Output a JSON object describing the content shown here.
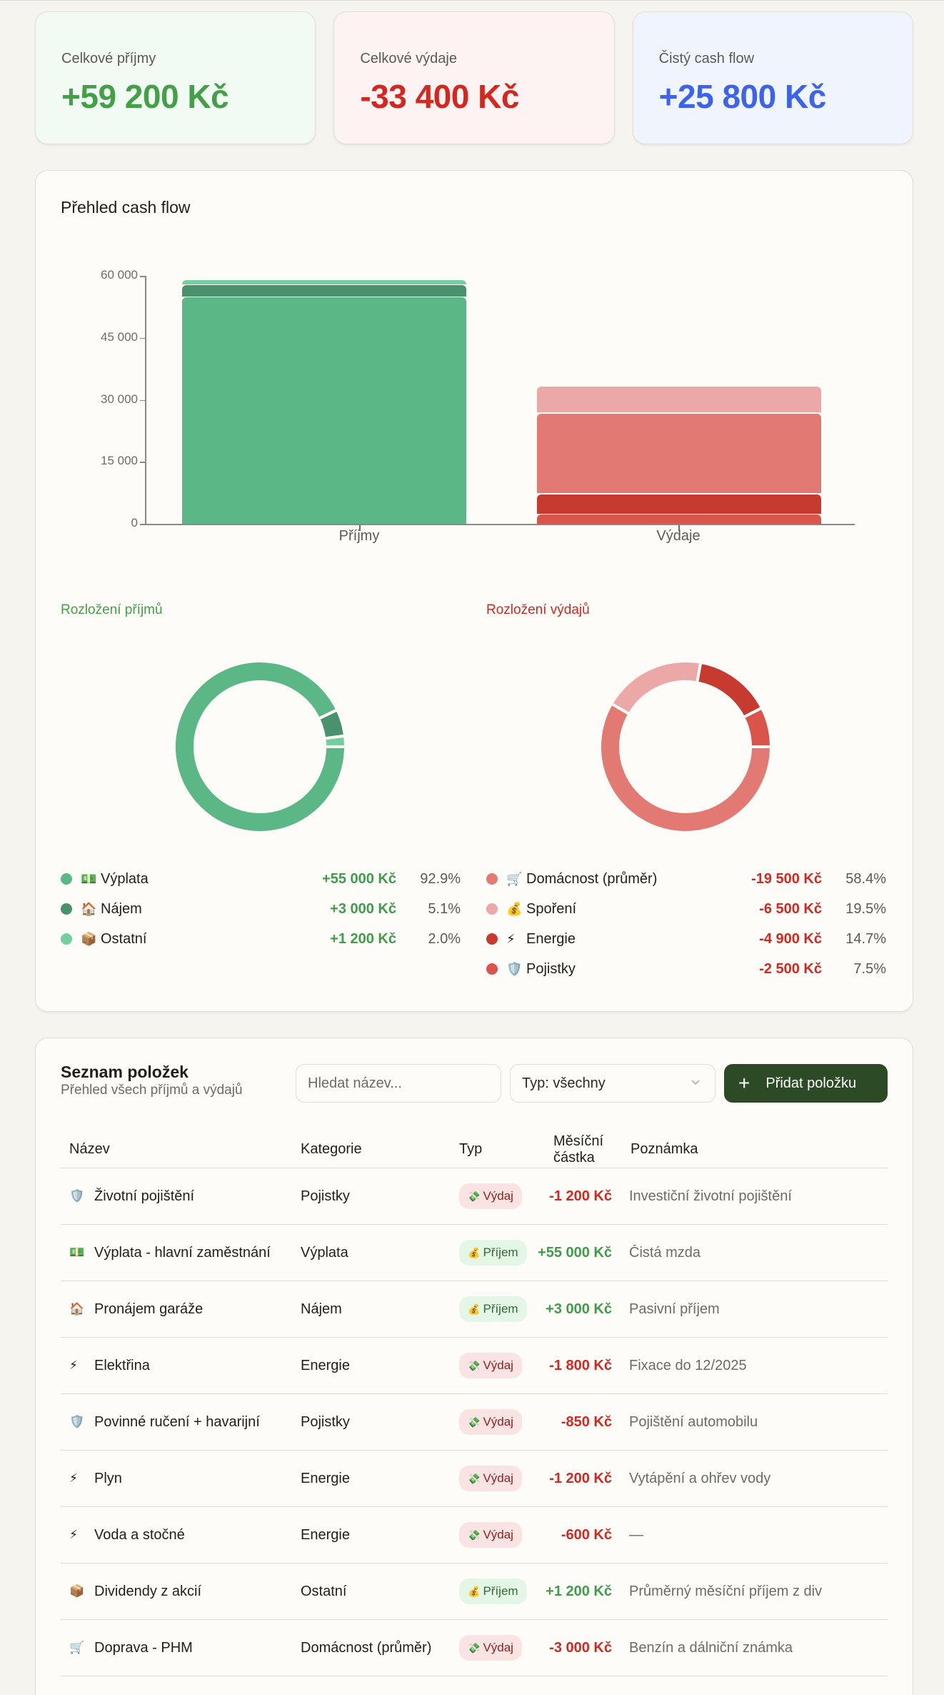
{
  "summary": {
    "income": {
      "label": "Celkové příjmy",
      "value": "+59 200 Kč",
      "color": "#43a047"
    },
    "expenses": {
      "label": "Celkové výdaje",
      "value": "-33 400 Kč",
      "color": "#d2281f"
    },
    "net": {
      "label": "Čistý cash flow",
      "value": "+25 800 Kč",
      "color": "#3c63ea"
    }
  },
  "overview": {
    "title": "Přehled cash flow",
    "income_breakdown_title": "Rozložení příjmů",
    "expense_breakdown_title": "Rozložení výdajů"
  },
  "chart_data": [
    {
      "type": "bar",
      "title": "Přehled cash flow",
      "stacked": true,
      "categories": [
        "Příjmy",
        "Výdaje"
      ],
      "y_ticks": [
        "0",
        "15 000",
        "30 000",
        "45 000",
        "60 000"
      ],
      "ylim": [
        0,
        60000
      ],
      "grid": false,
      "series": [
        {
          "name": "Výplata",
          "color": "#5bb786",
          "values": [
            55000,
            0
          ]
        },
        {
          "name": "Nájem",
          "color": "#4a916d",
          "values": [
            3000,
            0
          ]
        },
        {
          "name": "Ostatní",
          "color": "#73cf9d",
          "values": [
            1200,
            0
          ]
        },
        {
          "name": "Pojistky",
          "color": "#db544b",
          "values": [
            0,
            2500
          ]
        },
        {
          "name": "Energie",
          "color": "#c63a2f",
          "values": [
            0,
            4900
          ]
        },
        {
          "name": "Domácnost (průměr)",
          "color": "#e27973",
          "values": [
            0,
            19500
          ]
        },
        {
          "name": "Spoření",
          "color": "#eca8a7",
          "values": [
            0,
            6500
          ]
        }
      ]
    },
    {
      "type": "pie",
      "variant": "donut",
      "title": "Rozložení příjmů",
      "labels": [
        "Výplata",
        "Nájem",
        "Ostatní"
      ],
      "values": [
        55000,
        3000,
        1200
      ],
      "percent": [
        92.9,
        5.1,
        2.0
      ],
      "colors": [
        "#5bb786",
        "#4a916d",
        "#73cf9d"
      ]
    },
    {
      "type": "pie",
      "variant": "donut",
      "title": "Rozložení výdajů",
      "labels": [
        "Domácnost (průměr)",
        "Spoření",
        "Energie",
        "Pojistky"
      ],
      "values": [
        19500,
        6500,
        4900,
        2500
      ],
      "percent": [
        58.4,
        19.5,
        14.7,
        7.5
      ],
      "colors": [
        "#e27973",
        "#eca8a7",
        "#c63a2f",
        "#db544b"
      ]
    }
  ],
  "income_legend": [
    {
      "emoji": "💵",
      "name": "Výplata",
      "amount": "+55 000 Kč",
      "pct": "92.9%",
      "color": "#5bb786"
    },
    {
      "emoji": "🏠",
      "name": "Nájem",
      "amount": "+3 000 Kč",
      "pct": "5.1%",
      "color": "#4a916d"
    },
    {
      "emoji": "📦",
      "name": "Ostatní",
      "amount": "+1 200 Kč",
      "pct": "2.0%",
      "color": "#73cf9d"
    }
  ],
  "expense_legend": [
    {
      "emoji": "🛒",
      "name": "Domácnost (průměr)",
      "amount": "-19 500 Kč",
      "pct": "58.4%",
      "color": "#e27973"
    },
    {
      "emoji": "💰",
      "name": "Spoření",
      "amount": "-6 500 Kč",
      "pct": "19.5%",
      "color": "#eca8a7"
    },
    {
      "emoji": "⚡",
      "name": "Energie",
      "amount": "-4 900 Kč",
      "pct": "14.7%",
      "color": "#c63a2f"
    },
    {
      "emoji": "🛡️",
      "name": "Pojistky",
      "amount": "-2 500 Kč",
      "pct": "7.5%",
      "color": "#db544b"
    }
  ],
  "list": {
    "title": "Seznam položek",
    "subtitle": "Přehled všech příjmů a výdajů",
    "search_placeholder": "Hledat název...",
    "type_filter": "Typ: všechny",
    "add_button": "Přidat položku",
    "columns": [
      "Název",
      "Kategorie",
      "Typ",
      "Měsíční částka",
      "Poznámka"
    ],
    "rows": [
      {
        "emoji": "🛡️",
        "name": "Životní pojištění",
        "category": "Pojistky",
        "type": "Výdaj",
        "type_emoji": "💸",
        "kind": "exp",
        "amount": "-1 200 Kč",
        "note": "Investiční životní pojištění"
      },
      {
        "emoji": "💵",
        "name": "Výplata - hlavní zaměstnání",
        "category": "Výplata",
        "type": "Příjem",
        "type_emoji": "💰",
        "kind": "inc",
        "amount": "+55 000 Kč",
        "note": "Čistá mzda"
      },
      {
        "emoji": "🏠",
        "name": "Pronájem garáže",
        "category": "Nájem",
        "type": "Příjem",
        "type_emoji": "💰",
        "kind": "inc",
        "amount": "+3 000 Kč",
        "note": "Pasivní příjem"
      },
      {
        "emoji": "⚡",
        "name": "Elektřina",
        "category": "Energie",
        "type": "Výdaj",
        "type_emoji": "💸",
        "kind": "exp",
        "amount": "-1 800 Kč",
        "note": "Fixace do 12/2025"
      },
      {
        "emoji": "🛡️",
        "name": "Povinné ručení + havarijní",
        "category": "Pojistky",
        "type": "Výdaj",
        "type_emoji": "💸",
        "kind": "exp",
        "amount": "-850 Kč",
        "note": "Pojištění automobilu"
      },
      {
        "emoji": "⚡",
        "name": "Plyn",
        "category": "Energie",
        "type": "Výdaj",
        "type_emoji": "💸",
        "kind": "exp",
        "amount": "-1 200 Kč",
        "note": "Vytápění a ohřev vody"
      },
      {
        "emoji": "⚡",
        "name": "Voda a stočné",
        "category": "Energie",
        "type": "Výdaj",
        "type_emoji": "💸",
        "kind": "exp",
        "amount": "-600 Kč",
        "note": "—"
      },
      {
        "emoji": "📦",
        "name": "Dividendy z akcií",
        "category": "Ostatní",
        "type": "Příjem",
        "type_emoji": "💰",
        "kind": "inc",
        "amount": "+1 200 Kč",
        "note": "Průměrný měsíční příjem z div"
      },
      {
        "emoji": "🛒",
        "name": "Doprava - PHM",
        "category": "Domácnost (průměr)",
        "type": "Výdaj",
        "type_emoji": "💸",
        "kind": "exp",
        "amount": "-3 000 Kč",
        "note": "Benzín a dálniční známka"
      }
    ]
  }
}
